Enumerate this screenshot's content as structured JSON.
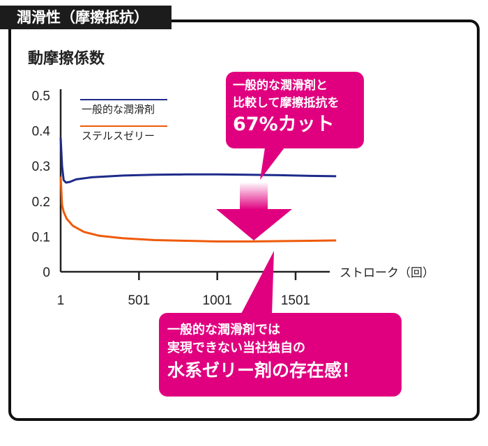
{
  "header": {
    "title": "潤滑性（摩擦抵抗）"
  },
  "chart_data": {
    "type": "line",
    "title": "潤滑性（摩擦抵抗）",
    "ylabel": "動摩擦係数",
    "xlabel": "ストローク（回）",
    "ylim": [
      0,
      0.55
    ],
    "xlim": [
      1,
      1900
    ],
    "yticks": [
      "0",
      "0.1",
      "0.2",
      "0.3",
      "0.4",
      "0.5"
    ],
    "ytick_values": [
      0,
      0.1,
      0.2,
      0.3,
      0.4,
      0.5
    ],
    "xticks": [
      "1",
      "501",
      "1001",
      "1501"
    ],
    "xtick_values": [
      1,
      501,
      1001,
      1501
    ],
    "grid": false,
    "legend_placement": "top-left",
    "series": [
      {
        "name": "一般的な潤滑剤",
        "color": "#1e2a8a",
        "x": [
          1,
          10,
          20,
          35,
          60,
          100,
          200,
          400,
          600,
          800,
          1000,
          1200,
          1400,
          1600,
          1760
        ],
        "y": [
          0.38,
          0.3,
          0.26,
          0.253,
          0.255,
          0.262,
          0.268,
          0.273,
          0.275,
          0.276,
          0.276,
          0.275,
          0.274,
          0.272,
          0.271
        ]
      },
      {
        "name": "ステルスゼリー",
        "color": "#ee5a0a",
        "x": [
          1,
          10,
          20,
          40,
          80,
          150,
          250,
          400,
          600,
          800,
          1000,
          1200,
          1400,
          1600,
          1760
        ],
        "y": [
          0.27,
          0.19,
          0.17,
          0.15,
          0.13,
          0.113,
          0.102,
          0.095,
          0.09,
          0.088,
          0.086,
          0.086,
          0.087,
          0.088,
          0.089
        ]
      }
    ],
    "annotations": {
      "top": [
        "一般的な潤滑剤と",
        "比較して摩擦抵抗を",
        "67%カット"
      ],
      "bottom": [
        "一般的な潤滑剤では",
        "実現できない当社独自の",
        "水系ゼリー剤の存在感！"
      ]
    },
    "accent_color": "#e0007f"
  }
}
